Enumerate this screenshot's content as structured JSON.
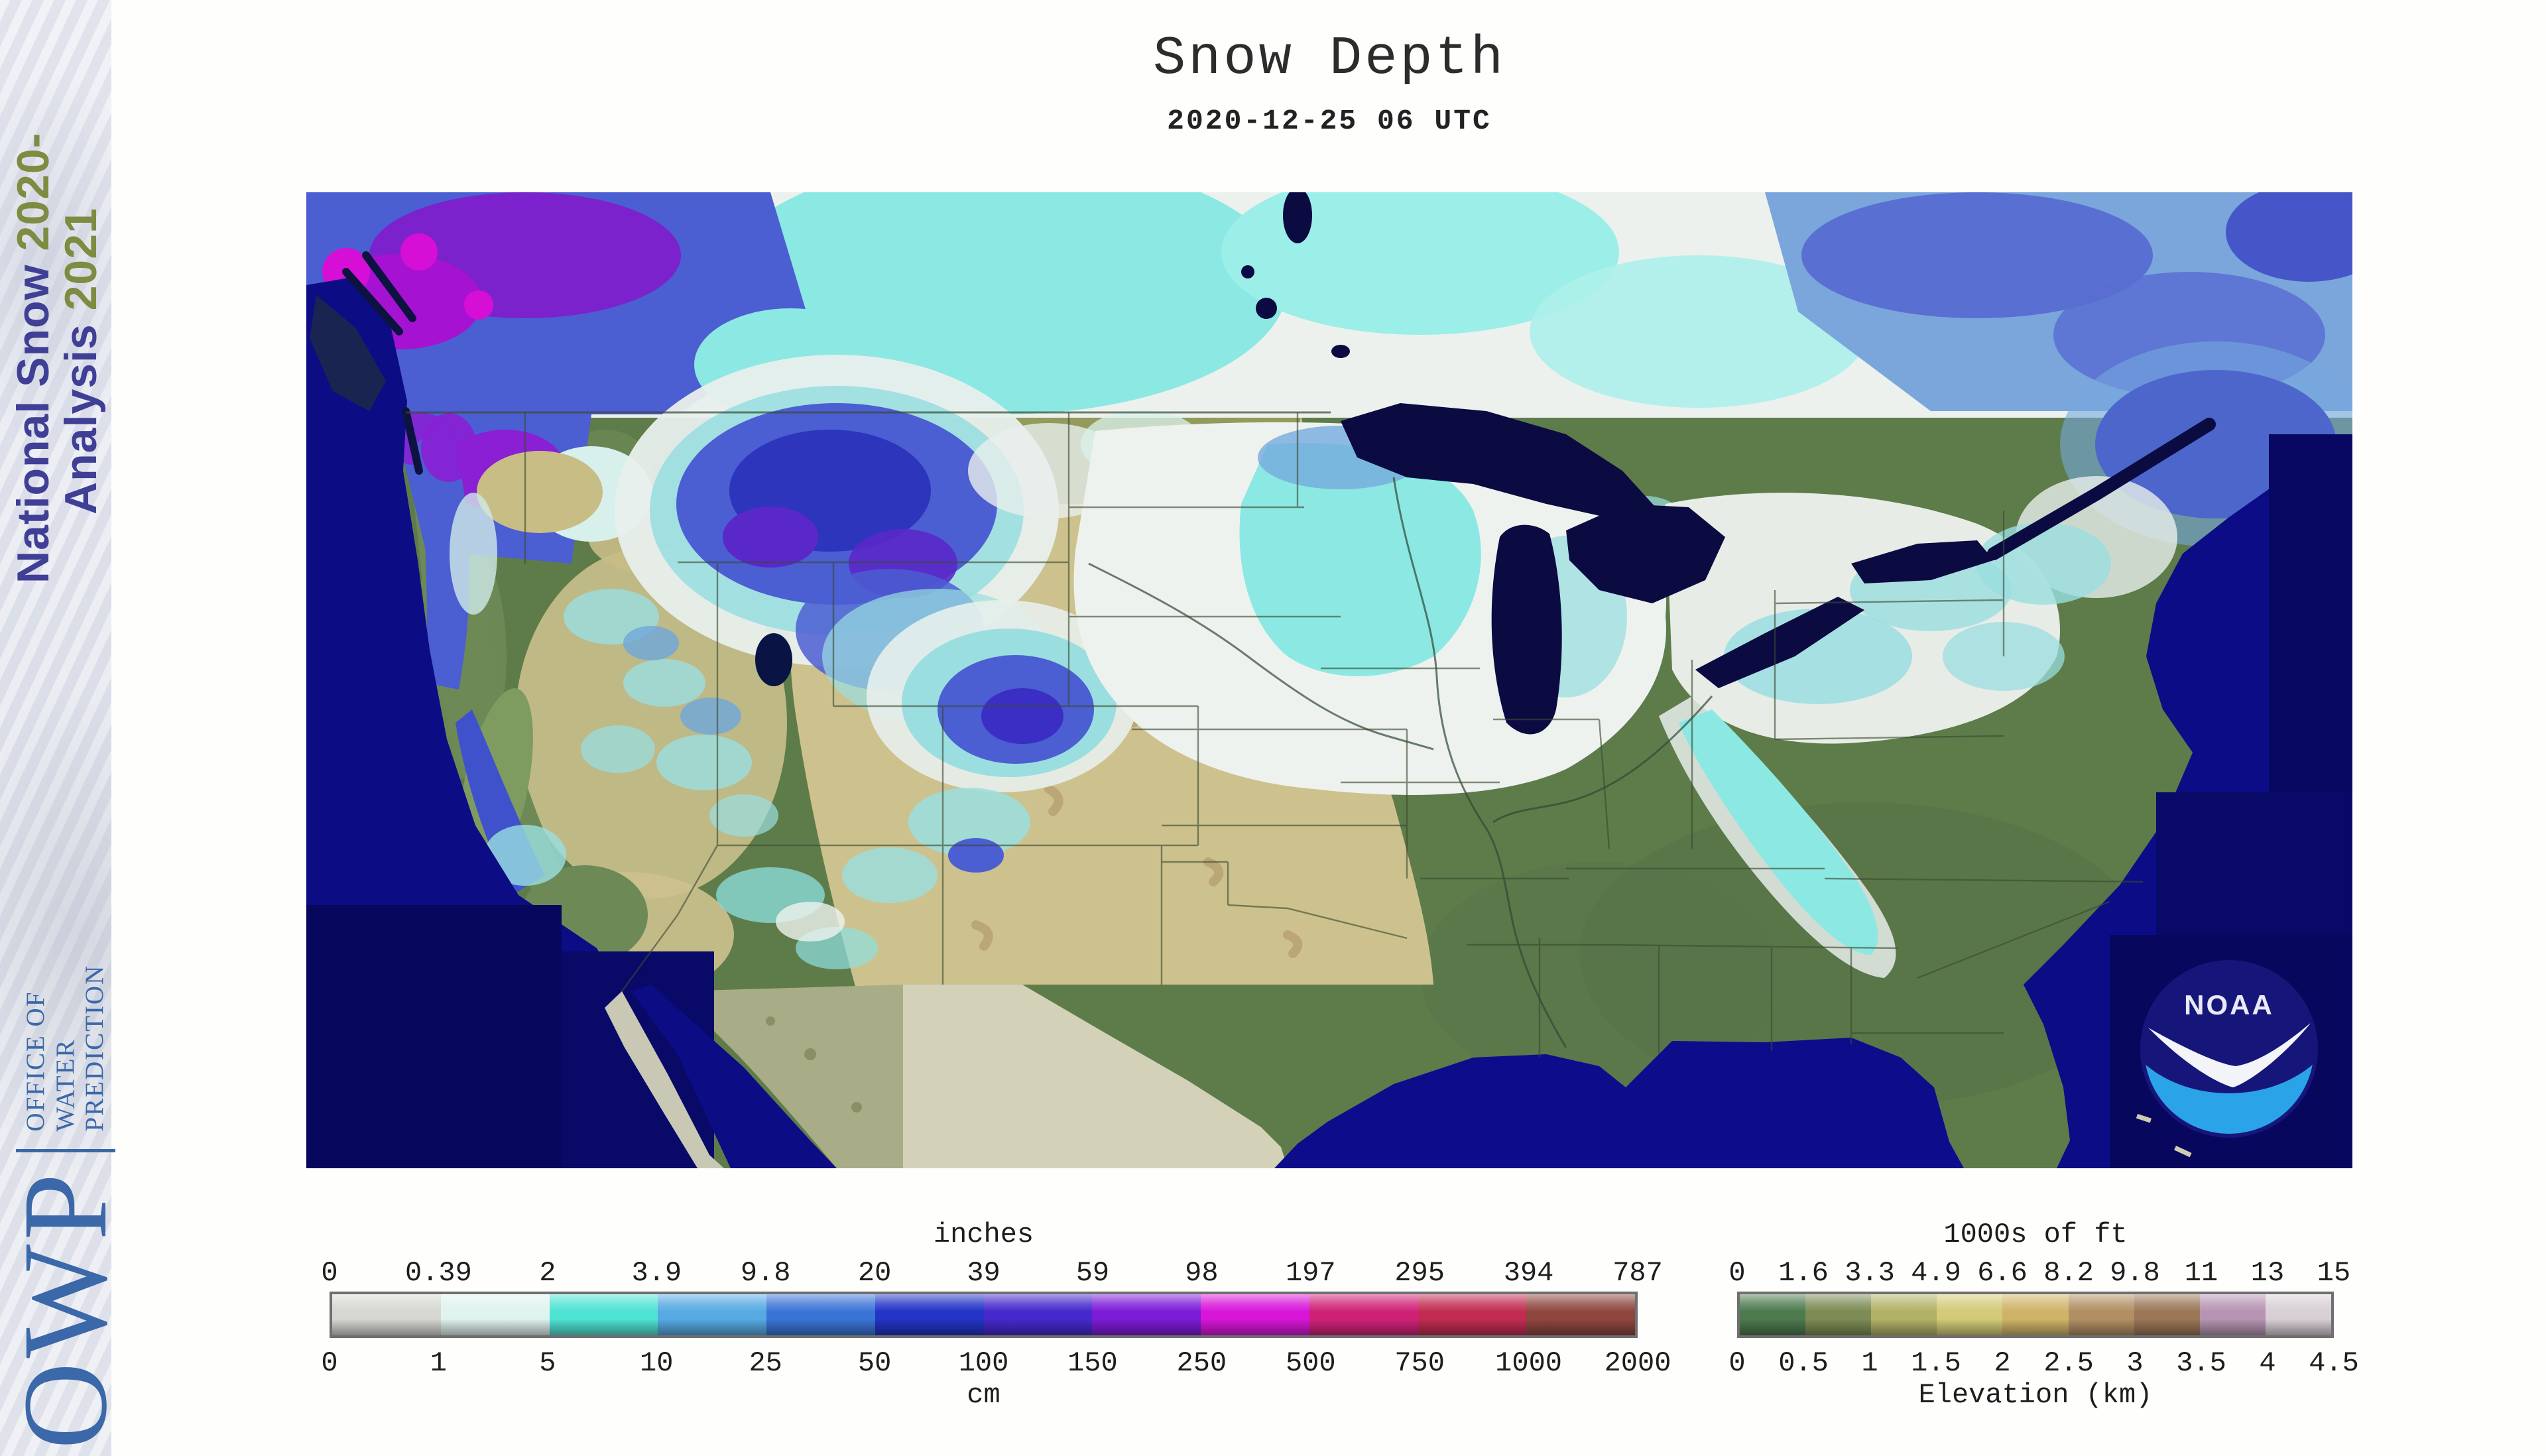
{
  "header": {
    "title": "Snow Depth",
    "datetime": "2020-12-25 06 UTC"
  },
  "sidebar": {
    "season_line1_text": "National Snow ",
    "season_line1_year": "2020-",
    "season_line2_text": "Analysis ",
    "season_line2_year": "2021",
    "owp_acronym": "OWP",
    "office_lines": [
      "OFFICE OF",
      "WATER",
      "PREDICTION"
    ]
  },
  "map": {
    "noaa_logo_text": "NOAA"
  },
  "legend_snow_depth": {
    "top_unit": "inches",
    "bottom_unit": "cm",
    "top_ticks": [
      "0",
      "0.39",
      "2",
      "3.9",
      "9.8",
      "20",
      "39",
      "59",
      "98",
      "197",
      "295",
      "394",
      "787"
    ],
    "bottom_ticks": [
      "0",
      "1",
      "5",
      "10",
      "25",
      "50",
      "100",
      "150",
      "250",
      "500",
      "750",
      "1000",
      "2000"
    ],
    "segment_colors": [
      "#d7d7d2",
      "#dff3ef",
      "#4fe3d4",
      "#57aae4",
      "#3a74d6",
      "#2334c6",
      "#4629cc",
      "#7c1cd6",
      "#d816d8",
      "#cf2277",
      "#c22c52",
      "#8f463e"
    ]
  },
  "legend_elevation": {
    "top_unit": "1000s of ft",
    "bottom_label": "Elevation (km)",
    "top_ticks": [
      "0",
      "1.6",
      "3.3",
      "4.9",
      "6.6",
      "8.2",
      "9.8",
      "11",
      "13",
      "15"
    ],
    "bottom_ticks": [
      "0",
      "0.5",
      "1",
      "1.5",
      "2",
      "2.5",
      "3",
      "3.5",
      "4",
      "4.5"
    ],
    "segment_colors": [
      "#4d7b4f",
      "#7c8c54",
      "#b2b267",
      "#d3cb77",
      "#cfb468",
      "#b28f63",
      "#9b7757",
      "#b794b3",
      "#d8d0d6"
    ]
  },
  "colors": {
    "ocean": "#0c0c84",
    "ocean_nodata": "#07075e",
    "great_lakes": "#0b0b42",
    "land_green": "#5e7c4a",
    "plains_tan": "#cdc28e",
    "mexico_mask": "#d3d1b8",
    "snow_white": "#eef2ef",
    "snow_cyan": "#8ce8e2",
    "snow_blue": "#4b5ed2",
    "snow_purple": "#8a1fd4",
    "snow_magenta": "#d60fd6",
    "sidebar_navy": "#3f3f96",
    "sidebar_green": "#7d8c41",
    "owp_blue": "#3a68a8",
    "noaa_logo_blue": "#2aa3e8"
  }
}
